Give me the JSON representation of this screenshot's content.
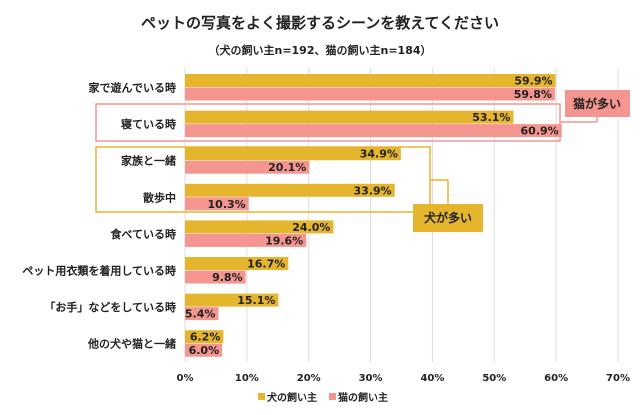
{
  "chart_data": {
    "type": "bar",
    "orientation": "horizontal",
    "title": "ペットの写真をよく撮影するシーンを教えてください",
    "subtitle": "（犬の飼い主n=192、猫の飼い主n=184）",
    "categories": [
      "家で遊んでいる時",
      "寝ている時",
      "家族と一緒",
      "散歩中",
      "食べている時",
      "ペット用衣類を着用している時",
      "「お手」などをしている時",
      "他の犬や猫と一緒"
    ],
    "series": [
      {
        "name": "犬の飼い主",
        "color": "#e6b52e",
        "values": [
          59.9,
          53.1,
          34.9,
          33.9,
          24.0,
          16.7,
          15.1,
          6.2
        ]
      },
      {
        "name": "猫の飼い主",
        "color": "#f4958f",
        "values": [
          59.8,
          60.9,
          20.1,
          10.3,
          19.6,
          9.8,
          5.4,
          6.0
        ]
      }
    ],
    "xlim": [
      0,
      70
    ],
    "xticks": [
      "0%",
      "10%",
      "20%",
      "30%",
      "40%",
      "50%",
      "60%",
      "70%"
    ],
    "grid": true,
    "legend": "bottom",
    "annotations": [
      {
        "label": "猫が多い",
        "color": "#f4958f"
      },
      {
        "label": "犬が多い",
        "color": "#e6b52e"
      }
    ]
  }
}
